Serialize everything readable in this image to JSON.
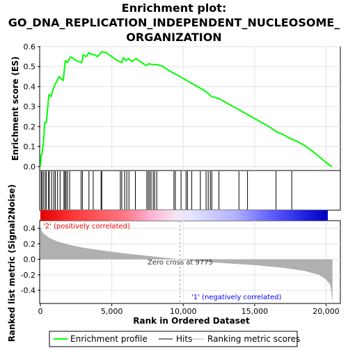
{
  "title_lines": [
    "Enrichment plot:",
    "GO_DNA_REPLICATION_INDEPENDENT_NUCLEOSOME_",
    "ORGANIZATION"
  ],
  "colors": {
    "enrichment": "#00ff00",
    "hits": "#000000",
    "metric_fill": "#b0b0b0",
    "positive_label": "#ff0000",
    "negative_label": "#0000ff",
    "zero_line": "#999999"
  },
  "chart_data": [
    {
      "type": "line",
      "name": "enrichment",
      "ylabel": "Enrichment score (ES)",
      "ylim": [
        -0.02,
        0.6
      ],
      "xlim": [
        0,
        21000
      ],
      "yticks": [
        "0.0",
        "0.1",
        "0.2",
        "0.3",
        "0.4",
        "0.5",
        "0.6"
      ],
      "ytick_values": [
        0,
        0.1,
        0.2,
        0.3,
        0.4,
        0.5,
        0.6
      ],
      "x": [
        0,
        60,
        100,
        220,
        300,
        420,
        600,
        750,
        900,
        1100,
        1300,
        1600,
        1750,
        1900,
        2100,
        2500,
        2900,
        3000,
        3200,
        3400,
        3600,
        3800,
        4000,
        4300,
        4600,
        5000,
        5400,
        5700,
        5800,
        6000,
        6200,
        6400,
        6700,
        7000,
        7400,
        7600,
        7800,
        8200,
        8600,
        9000,
        9800,
        10500,
        11000,
        11500,
        12000,
        12500,
        13000,
        13500,
        14000,
        14500,
        15000,
        15500,
        16000,
        16500,
        17000,
        17500,
        18000,
        18500,
        19000,
        19500,
        20000,
        20400
      ],
      "y": [
        0.0,
        0.06,
        0.06,
        0.12,
        0.22,
        0.22,
        0.36,
        0.35,
        0.39,
        0.42,
        0.45,
        0.43,
        0.53,
        0.52,
        0.55,
        0.53,
        0.52,
        0.56,
        0.55,
        0.57,
        0.56,
        0.56,
        0.55,
        0.575,
        0.57,
        0.55,
        0.53,
        0.52,
        0.545,
        0.53,
        0.54,
        0.525,
        0.54,
        0.525,
        0.505,
        0.515,
        0.51,
        0.51,
        0.5,
        0.48,
        0.45,
        0.42,
        0.4,
        0.38,
        0.35,
        0.34,
        0.32,
        0.3,
        0.28,
        0.26,
        0.24,
        0.22,
        0.2,
        0.175,
        0.16,
        0.14,
        0.125,
        0.105,
        0.08,
        0.05,
        0.02,
        0.0
      ]
    },
    {
      "type": "scatter",
      "name": "hits",
      "xlim": [
        0,
        21000
      ],
      "x": [
        60,
        110,
        210,
        330,
        410,
        560,
        640,
        800,
        950,
        1050,
        1200,
        1380,
        1650,
        1720,
        1800,
        1900,
        2050,
        2850,
        2950,
        3400,
        3700,
        4250,
        4300,
        5600,
        5700,
        5900,
        6050,
        6200,
        6650,
        7450,
        7550,
        7650,
        7750,
        7900,
        8000,
        8150,
        9350,
        9450,
        9850,
        10200,
        10300,
        10600,
        11200,
        11600,
        11750,
        11900,
        12000,
        12500,
        13900,
        14500,
        16500,
        17600
      ]
    },
    {
      "type": "area",
      "name": "ranked_list_metric",
      "ylabel": "Ranked list metric (Signal2Noise)",
      "xlabel": "Rank in Ordered Dataset",
      "xlim": [
        0,
        21000
      ],
      "ylim": [
        -0.57,
        0.5
      ],
      "xticks": [
        "0",
        "5,000",
        "10,000",
        "15,000",
        "20,000"
      ],
      "xtick_values": [
        0,
        5000,
        10000,
        15000,
        20000
      ],
      "yticks": [
        "0.4",
        "0.2",
        "0.0",
        "-0.2",
        "-0.4"
      ],
      "ytick_values": [
        0.4,
        0.2,
        0.0,
        -0.2,
        -0.4
      ],
      "x": [
        0,
        100,
        300,
        700,
        1200,
        2000,
        3000,
        4500,
        6000,
        7500,
        9000,
        9775,
        11000,
        13000,
        15000,
        17000,
        18500,
        19500,
        20000,
        20300,
        20450
      ],
      "y": [
        0.42,
        0.36,
        0.32,
        0.27,
        0.23,
        0.19,
        0.15,
        0.11,
        0.075,
        0.045,
        0.015,
        0.0,
        -0.025,
        -0.05,
        -0.075,
        -0.11,
        -0.15,
        -0.2,
        -0.26,
        -0.33,
        -0.55
      ]
    }
  ],
  "annotations": {
    "positive": "'2' (positively correlated)",
    "negative": "'1' (negatively correlated)",
    "zero_cross": "Zero cross at 9775"
  },
  "legend": {
    "items": [
      "Enrichment profile",
      "Hits",
      "Ranking metric scores"
    ]
  }
}
